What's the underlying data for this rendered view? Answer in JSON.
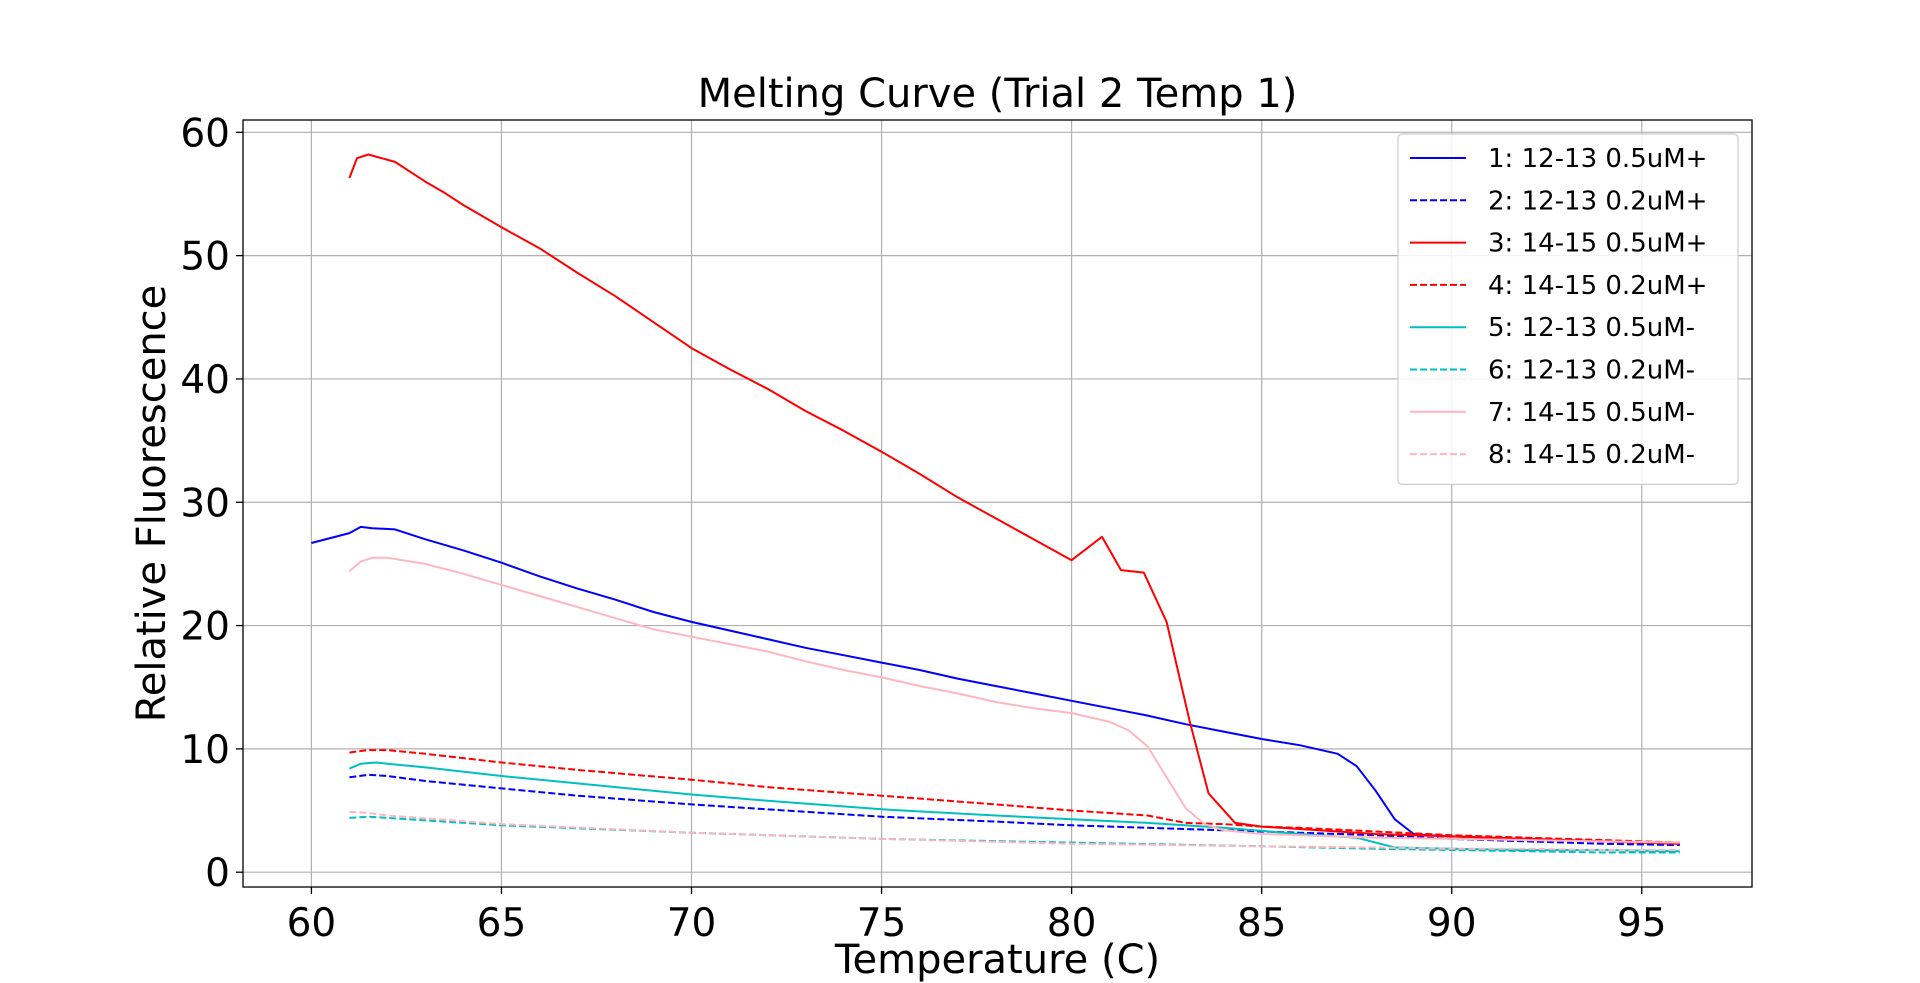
{
  "chart_data": {
    "type": "line",
    "title": "Melting Curve (Trial 2 Temp 1)",
    "xlabel": "Temperature (C)",
    "ylabel": "Relative Fluorescence",
    "xlim": [
      58.2,
      97.9
    ],
    "ylim": [
      -1.2,
      61.0
    ],
    "xticks": [
      "60",
      "65",
      "70",
      "75",
      "80",
      "85",
      "90",
      "95"
    ],
    "yticks": [
      "0",
      "10",
      "20",
      "30",
      "40",
      "50",
      "60"
    ],
    "grid": true,
    "legend_position": "top-right",
    "series": [
      {
        "name": "1: 12-13 0.5uM+",
        "color": "#0000ff",
        "dashed": false,
        "x": [
          60,
          61,
          61.3,
          61.6,
          62.2,
          63,
          64,
          65,
          66,
          67,
          68,
          69,
          70,
          71,
          72,
          73,
          74,
          75,
          76,
          77,
          78,
          79,
          80,
          81,
          82,
          83,
          84,
          85,
          86,
          87,
          87.5,
          88,
          88.5,
          89,
          89.4,
          90,
          91,
          92,
          93,
          94,
          95,
          96
        ],
        "y": [
          26.7,
          27.5,
          28.0,
          27.9,
          27.8,
          27.0,
          26.1,
          25.1,
          24.0,
          23.0,
          22.1,
          21.1,
          20.3,
          19.6,
          18.9,
          18.2,
          17.6,
          17.0,
          16.4,
          15.7,
          15.1,
          14.5,
          13.9,
          13.3,
          12.7,
          12.0,
          11.4,
          10.8,
          10.3,
          9.6,
          8.6,
          6.6,
          4.3,
          3.1,
          3.0,
          2.9,
          2.8,
          2.7,
          2.6,
          2.5,
          2.4,
          2.3
        ]
      },
      {
        "name": "2: 12-13 0.2uM+",
        "color": "#0000ff",
        "dashed": true,
        "x": [
          61,
          61.5,
          62,
          63,
          65,
          67,
          70,
          73,
          75,
          78,
          80,
          82,
          84,
          86,
          88,
          90,
          92,
          94,
          96
        ],
        "y": [
          7.7,
          7.9,
          7.8,
          7.4,
          6.8,
          6.2,
          5.5,
          4.9,
          4.5,
          4.1,
          3.8,
          3.6,
          3.4,
          3.2,
          3.0,
          2.7,
          2.5,
          2.3,
          2.2
        ]
      },
      {
        "name": "3: 14-15 0.5uM+",
        "color": "#ff0000",
        "dashed": false,
        "x": [
          61,
          61.2,
          61.5,
          62.2,
          63,
          63.5,
          64,
          65,
          66,
          67,
          68,
          69,
          70,
          71,
          72,
          73,
          74,
          75,
          76,
          77,
          78,
          79,
          80,
          80.8,
          81.3,
          81.9,
          82.5,
          83.1,
          83.6,
          84.3,
          85,
          86,
          87,
          88,
          89,
          90,
          91,
          92,
          93,
          94,
          95,
          96
        ],
        "y": [
          56.3,
          57.9,
          58.2,
          57.6,
          56.0,
          55.1,
          54.1,
          52.3,
          50.6,
          48.6,
          46.7,
          44.6,
          42.5,
          40.8,
          39.2,
          37.4,
          35.8,
          34.1,
          32.3,
          30.4,
          28.7,
          27.0,
          25.3,
          27.2,
          24.5,
          24.3,
          20.3,
          12.3,
          6.4,
          4.0,
          3.7,
          3.5,
          3.3,
          3.1,
          3.0,
          2.9,
          2.8,
          2.7,
          2.6,
          2.5,
          2.4,
          2.3
        ]
      },
      {
        "name": "4: 14-15 0.2uM+",
        "color": "#ff0000",
        "dashed": true,
        "x": [
          61,
          61.2,
          61.5,
          62,
          63,
          65,
          67,
          70,
          72,
          75,
          78,
          80,
          82,
          83,
          84,
          85,
          86,
          88,
          90,
          92,
          94,
          96
        ],
        "y": [
          9.7,
          9.8,
          9.9,
          9.9,
          9.6,
          8.9,
          8.3,
          7.5,
          6.9,
          6.2,
          5.5,
          5.0,
          4.6,
          4.0,
          3.9,
          3.7,
          3.6,
          3.3,
          3.0,
          2.8,
          2.6,
          2.4
        ]
      },
      {
        "name": "5: 12-13 0.5uM-",
        "color": "#00bfbf",
        "dashed": false,
        "x": [
          61,
          61.3,
          61.7,
          62,
          63,
          65,
          67,
          70,
          72,
          75,
          78,
          80,
          82,
          84,
          86,
          87.5,
          88.5,
          90,
          92,
          94,
          96
        ],
        "y": [
          8.4,
          8.8,
          8.9,
          8.8,
          8.5,
          7.8,
          7.2,
          6.3,
          5.8,
          5.1,
          4.6,
          4.3,
          4.0,
          3.6,
          3.1,
          2.8,
          2.0,
          1.9,
          1.8,
          1.8,
          1.7
        ]
      },
      {
        "name": "6: 12-13 0.2uM-",
        "color": "#00bfbf",
        "dashed": true,
        "x": [
          61,
          61.5,
          62,
          65,
          70,
          75,
          80,
          85,
          88,
          90,
          92,
          94,
          96
        ],
        "y": [
          4.4,
          4.5,
          4.4,
          3.8,
          3.2,
          2.7,
          2.4,
          2.1,
          1.9,
          1.8,
          1.7,
          1.6,
          1.6
        ]
      },
      {
        "name": "7: 14-15 0.5uM-",
        "color": "#ffb6c1",
        "dashed": false,
        "x": [
          61,
          61.3,
          61.6,
          62,
          63,
          64,
          65,
          66,
          67,
          68,
          69,
          70,
          71,
          72,
          73,
          74,
          75,
          76,
          77,
          78,
          79,
          80,
          81,
          81.5,
          82,
          82.5,
          83,
          83.5,
          84,
          85,
          86,
          88,
          90,
          92,
          94,
          96
        ],
        "y": [
          24.4,
          25.2,
          25.5,
          25.5,
          25.0,
          24.2,
          23.3,
          22.4,
          21.5,
          20.6,
          19.7,
          19.1,
          18.5,
          17.9,
          17.1,
          16.4,
          15.8,
          15.1,
          14.5,
          13.8,
          13.3,
          12.9,
          12.2,
          11.5,
          10.2,
          7.7,
          5.2,
          3.9,
          3.4,
          3.1,
          3.0,
          2.8,
          2.7,
          2.6,
          2.5,
          2.4
        ]
      },
      {
        "name": "8: 14-15 0.2uM-",
        "color": "#ffb6c1",
        "dashed": true,
        "x": [
          61,
          61.5,
          62,
          65,
          70,
          75,
          80,
          85,
          88,
          90,
          92,
          94,
          96
        ],
        "y": [
          4.9,
          4.8,
          4.6,
          3.9,
          3.2,
          2.7,
          2.3,
          2.1,
          2.0,
          1.9,
          1.9,
          1.8,
          1.8
        ]
      }
    ]
  }
}
